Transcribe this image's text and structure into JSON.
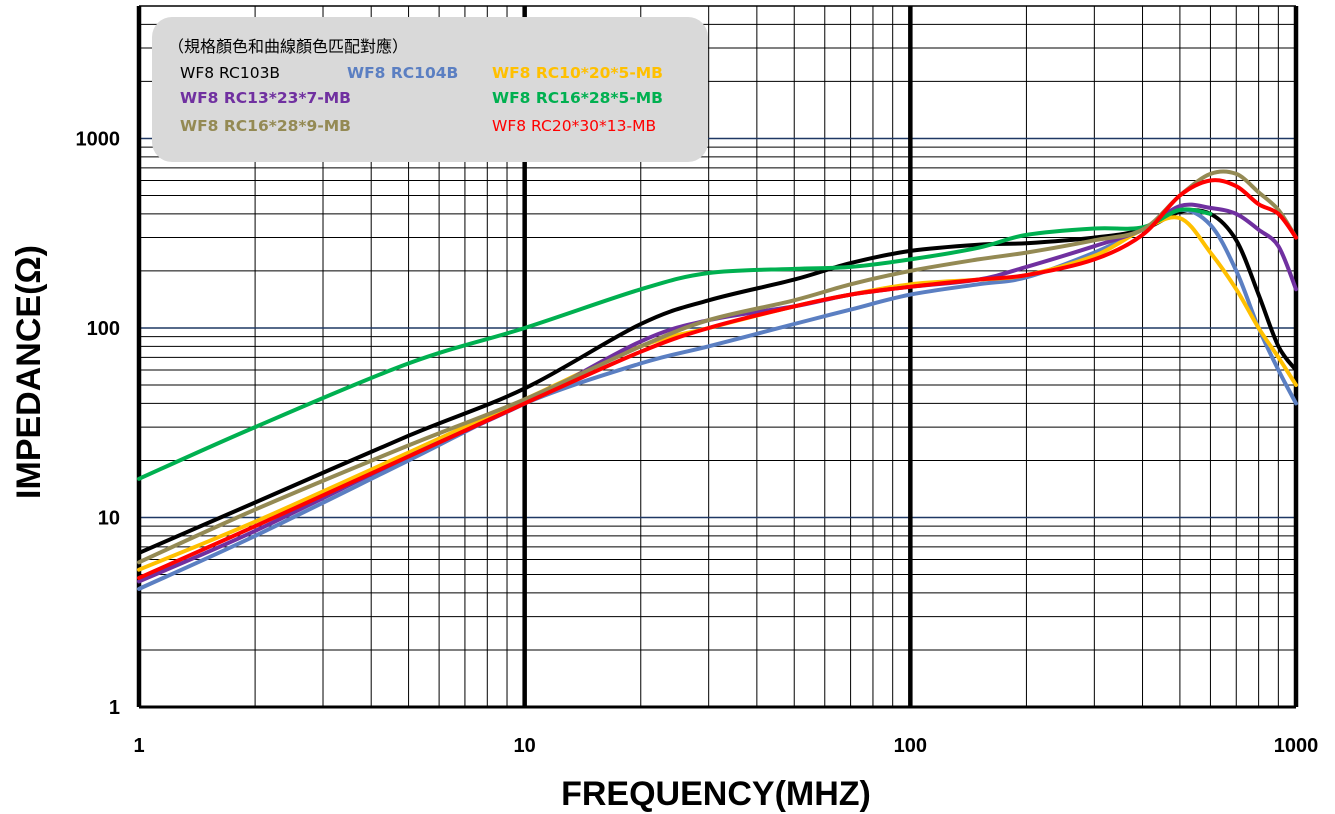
{
  "chart_data": {
    "type": "line",
    "title": "",
    "xlabel": "FREQUENCY(MHZ)",
    "ylabel": "IMPEDANCE(Ω)",
    "x_scale": "log",
    "y_scale": "log",
    "xlim": [
      1,
      1000
    ],
    "ylim": [
      1,
      5000
    ],
    "x_ticks": [
      {
        "value": 1,
        "label": "1"
      },
      {
        "value": 10,
        "label": "10"
      },
      {
        "value": 100,
        "label": "100"
      },
      {
        "value": 1000,
        "label": "1000"
      }
    ],
    "y_ticks": [
      {
        "value": 1,
        "label": "1"
      },
      {
        "value": 10,
        "label": "10"
      },
      {
        "value": 100,
        "label": "100"
      },
      {
        "value": 1000,
        "label": "1000"
      }
    ],
    "grid": true,
    "legend": {
      "placement": "top-left",
      "title": "（規格顏色和曲線顏色匹配對應）"
    },
    "series": [
      {
        "name": "WF8 RC103B",
        "color": "#000000",
        "x": [
          1,
          2,
          5,
          10,
          20,
          30,
          50,
          70,
          100,
          150,
          200,
          300,
          400,
          500,
          600,
          700,
          800,
          900,
          1000
        ],
        "y": [
          6.5,
          12,
          27,
          48,
          105,
          140,
          180,
          220,
          255,
          275,
          280,
          300,
          330,
          410,
          400,
          290,
          150,
          80,
          60
        ]
      },
      {
        "name": "WF8 RC104B",
        "color": "#5B7FC2",
        "x": [
          1,
          2,
          5,
          10,
          20,
          30,
          50,
          70,
          100,
          150,
          200,
          300,
          400,
          500,
          600,
          700,
          800,
          900,
          1000
        ],
        "y": [
          4.2,
          8,
          20,
          40,
          65,
          80,
          105,
          125,
          150,
          170,
          185,
          250,
          330,
          420,
          350,
          200,
          100,
          60,
          40
        ]
      },
      {
        "name": "WF8 RC10*20*5-MB",
        "color": "#FFC000",
        "x": [
          1,
          2,
          5,
          10,
          20,
          30,
          50,
          70,
          100,
          150,
          200,
          300,
          400,
          500,
          600,
          700,
          800,
          900,
          1000
        ],
        "y": [
          5.3,
          9.5,
          22,
          42,
          80,
          100,
          130,
          150,
          170,
          180,
          190,
          240,
          330,
          380,
          250,
          160,
          100,
          70,
          50
        ]
      },
      {
        "name": "WF8 RC13*23*7-MB",
        "color": "#7030A0",
        "x": [
          1,
          2,
          5,
          10,
          20,
          30,
          50,
          70,
          100,
          150,
          200,
          300,
          400,
          500,
          600,
          700,
          800,
          900,
          1000
        ],
        "y": [
          4.6,
          8.5,
          21,
          40,
          85,
          110,
          130,
          150,
          165,
          180,
          210,
          270,
          330,
          440,
          430,
          400,
          330,
          270,
          160
        ]
      },
      {
        "name": "WF8 RC16*28*5-MB",
        "color": "#00B050",
        "x": [
          1,
          2,
          5,
          10,
          20,
          30,
          50,
          70,
          100,
          150,
          200,
          300,
          400,
          500,
          600
        ],
        "y": [
          16,
          30,
          65,
          100,
          160,
          195,
          205,
          210,
          230,
          265,
          310,
          335,
          340,
          420,
          400
        ]
      },
      {
        "name": "WF8 RC16*28*9-MB",
        "color": "#948A54",
        "x": [
          1,
          2,
          5,
          10,
          20,
          30,
          50,
          70,
          100,
          150,
          200,
          300,
          400,
          500,
          600,
          700,
          800,
          900,
          1000
        ],
        "y": [
          5.8,
          11,
          24,
          42,
          80,
          110,
          140,
          170,
          200,
          230,
          250,
          290,
          330,
          500,
          650,
          650,
          520,
          420,
          300
        ]
      },
      {
        "name": "WF8 RC20*30*13-MB",
        "color": "#FF0000",
        "x": [
          1,
          2,
          5,
          10,
          20,
          30,
          50,
          70,
          100,
          150,
          200,
          300,
          400,
          500,
          600,
          700,
          800,
          900,
          1000
        ],
        "y": [
          4.8,
          9,
          21,
          40,
          75,
          100,
          130,
          150,
          165,
          180,
          190,
          230,
          310,
          500,
          600,
          560,
          450,
          400,
          300
        ]
      }
    ]
  }
}
